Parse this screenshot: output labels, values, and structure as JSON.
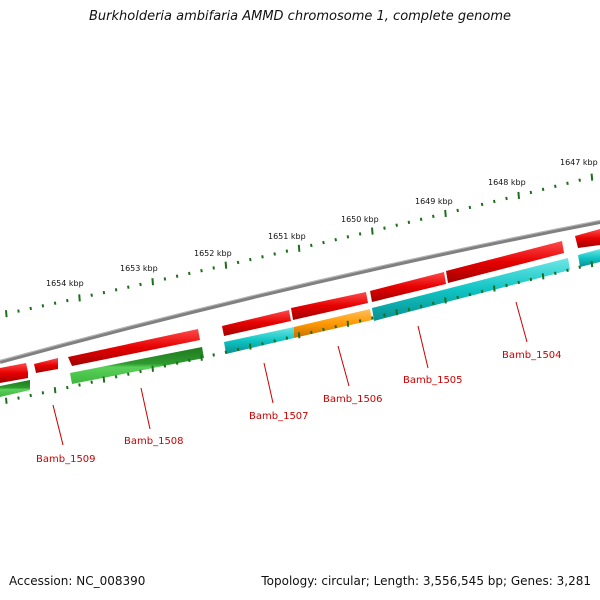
{
  "title": "Burkholderia ambifaria AMMD chromosome 1, complete genome",
  "footer": {
    "accession": "Accession: NC_008390",
    "topology": "Topology: circular; Length: 3,556,545 bp; Genes: 3,281"
  },
  "ruler": {
    "unit": "kbp",
    "ticks": [
      {
        "label": "1647 kbp"
      },
      {
        "label": "1648 kbp"
      },
      {
        "label": "1649 kbp"
      },
      {
        "label": "1650 kbp"
      },
      {
        "label": "1651 kbp"
      },
      {
        "label": "1652 kbp"
      },
      {
        "label": "1653 kbp"
      },
      {
        "label": "1654 kbp"
      }
    ]
  },
  "genes": [
    {
      "label": "Bamb_1504"
    },
    {
      "label": "Bamb_1505"
    },
    {
      "label": "Bamb_1506"
    },
    {
      "label": "Bamb_1507"
    },
    {
      "label": "Bamb_1508"
    },
    {
      "label": "Bamb_1509"
    }
  ],
  "colors": {
    "cds_forward": "#e60000",
    "cds_reverse_cyan": "#00c8c8",
    "cds_reverse_orange": "#ff9900",
    "cds_reverse_green": "#2ea82e",
    "backbone": "#808080",
    "tick": "#1e6e1e",
    "gene_label": "#cc0000"
  }
}
